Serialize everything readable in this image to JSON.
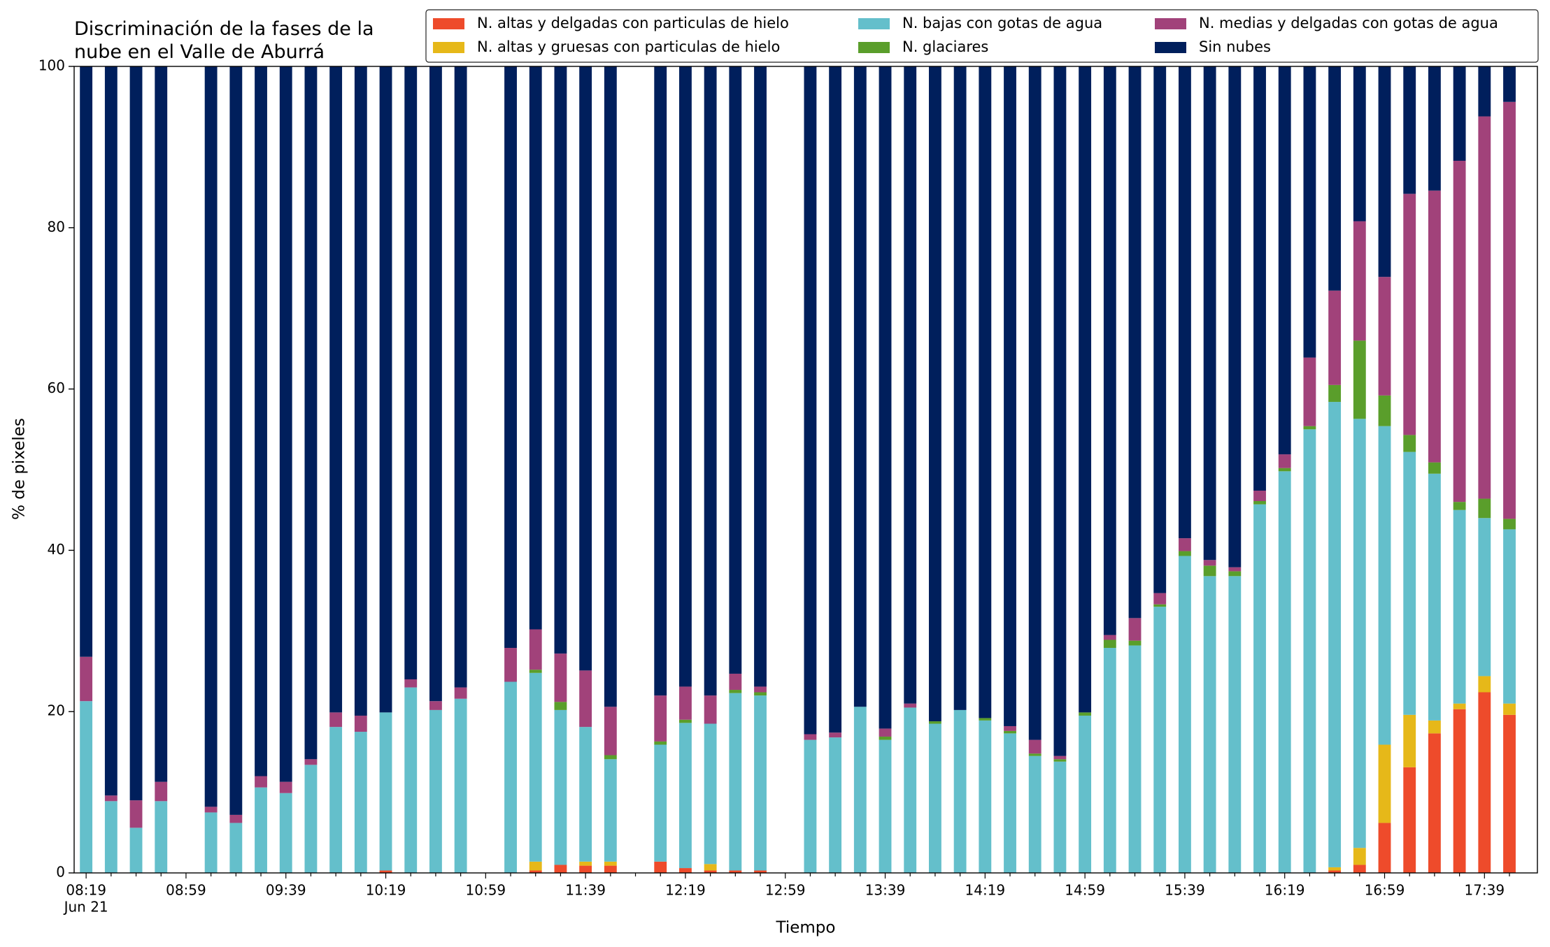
{
  "chart_data": {
    "type": "stacked_bar",
    "title": [
      "Discriminación de la fases de la",
      "nube en el Valle de Aburrá"
    ],
    "x_label": "Tiempo",
    "y_label": "% de pixeles",
    "x_sublabel": "Jun 21",
    "categories": [
      "08:19",
      null,
      null,
      null,
      "08:59",
      null,
      null,
      null,
      "09:39",
      null,
      null,
      null,
      "10:19",
      null,
      null,
      null,
      "10:59",
      null,
      null,
      null,
      "11:39",
      null,
      null,
      null,
      "12:19",
      null,
      null,
      null,
      "12:59",
      null,
      null,
      null,
      "13:39",
      null,
      null,
      null,
      "14:19",
      null,
      null,
      null,
      "14:59",
      null,
      null,
      null,
      "15:39",
      null,
      null,
      null,
      "16:19",
      null,
      null,
      null,
      "16:59",
      null,
      null,
      null,
      "17:39",
      null
    ],
    "ylim": [
      0,
      100
    ],
    "yticks": [
      0,
      20,
      40,
      60,
      80,
      100
    ],
    "grid": false,
    "legend": "upper right",
    "series": [
      {
        "name": "N. altas y delgadas con particulas de hielo",
        "color": "#ee4b2b",
        "values": [
          0,
          0,
          0,
          0,
          null,
          0,
          0,
          0,
          0,
          0,
          0,
          0,
          0.3,
          0,
          0,
          0,
          null,
          0,
          0.3,
          1.0,
          0.9,
          0.9,
          null,
          1.4,
          0.6,
          0.3,
          0.3,
          0.3,
          null,
          0,
          0,
          0,
          0,
          0,
          0,
          0,
          0,
          0,
          0,
          0,
          0,
          0,
          0,
          0,
          0,
          0,
          0,
          0,
          0,
          0,
          0.3,
          1.0,
          6.2,
          13.1,
          17.3,
          20.3,
          22.4,
          19.6
        ]
      },
      {
        "name": "N. altas y gruesas con particulas de hielo",
        "color": "#e6b819",
        "values": [
          0,
          0,
          0,
          0,
          null,
          0,
          0,
          0,
          0,
          0,
          0,
          0,
          0,
          0,
          0,
          0,
          null,
          0,
          1.1,
          0,
          0.5,
          0.5,
          null,
          0,
          0,
          0.8,
          0,
          0,
          null,
          0,
          0,
          0,
          0,
          0,
          0,
          0,
          0,
          0,
          0,
          0,
          0,
          0,
          0,
          0,
          0,
          0,
          0,
          0,
          0,
          0,
          0.4,
          2.1,
          9.7,
          6.5,
          1.6,
          0.7,
          2.0,
          1.4
        ]
      },
      {
        "name": "N. bajas con gotas de agua",
        "color": "#64bfcb",
        "values": [
          21.3,
          8.9,
          5.6,
          8.9,
          null,
          7.5,
          6.2,
          10.6,
          9.9,
          13.4,
          18.1,
          17.5,
          19.6,
          23.0,
          20.2,
          21.6,
          null,
          23.7,
          23.4,
          19.2,
          16.7,
          12.7,
          null,
          14.5,
          18.0,
          17.4,
          22.0,
          21.7,
          null,
          16.5,
          16.8,
          20.6,
          16.5,
          20.5,
          18.5,
          20.2,
          18.9,
          17.3,
          14.5,
          13.8,
          19.5,
          27.9,
          28.2,
          33.0,
          39.3,
          36.8,
          36.8,
          45.7,
          49.8,
          55.0,
          57.7,
          53.2,
          39.5,
          32.6,
          30.6,
          24.0,
          19.6,
          21.6
        ]
      },
      {
        "name": "N. glaciares",
        "color": "#5a9e2b",
        "values": [
          0,
          0,
          0,
          0,
          null,
          0,
          0,
          0,
          0,
          0,
          0,
          0,
          0,
          0,
          0,
          0,
          null,
          0,
          0.4,
          1.0,
          0,
          0.5,
          null,
          0.4,
          0.4,
          0,
          0.4,
          0.4,
          null,
          0,
          0,
          0,
          0.4,
          0,
          0.3,
          0,
          0.3,
          0.3,
          0.3,
          0.3,
          0.4,
          1.0,
          0.6,
          0.3,
          0.6,
          1.3,
          0.6,
          0.4,
          0.4,
          0.4,
          2.1,
          9.7,
          3.8,
          2.1,
          1.4,
          1.0,
          2.4,
          1.3
        ]
      },
      {
        "name": "N. medias y delgadas con gotas de agua",
        "color": "#a1427a",
        "values": [
          5.5,
          0.7,
          3.4,
          2.4,
          null,
          0.7,
          1.0,
          1.4,
          1.4,
          0.7,
          1.8,
          2.0,
          0,
          1.0,
          1.1,
          1.4,
          null,
          4.2,
          5.0,
          6.0,
          7.0,
          6.0,
          null,
          5.7,
          4.1,
          3.5,
          2.0,
          0.7,
          null,
          0.7,
          0.6,
          0,
          1.0,
          0.5,
          0,
          0,
          0,
          0.6,
          1.7,
          0.4,
          0,
          0.6,
          2.8,
          1.4,
          1.6,
          0.7,
          0.5,
          1.3,
          1.7,
          8.5,
          11.7,
          14.8,
          14.7,
          29.9,
          33.7,
          42.3,
          47.4,
          51.7
        ]
      },
      {
        "name": "Sin nubes",
        "color": "#001f5c",
        "values": [
          73.2,
          90.4,
          91.0,
          88.7,
          null,
          91.8,
          92.8,
          88.0,
          88.7,
          85.9,
          80.1,
          80.5,
          80.1,
          76.0,
          78.7,
          77.0,
          null,
          72.1,
          69.8,
          72.8,
          74.9,
          79.4,
          null,
          78.0,
          76.9,
          78.0,
          75.3,
          76.9,
          null,
          82.8,
          82.6,
          79.4,
          82.1,
          79.0,
          81.2,
          79.8,
          80.8,
          81.8,
          83.5,
          85.5,
          80.1,
          70.5,
          68.4,
          65.3,
          58.5,
          61.2,
          62.1,
          52.6,
          48.1,
          36.1,
          27.8,
          19.2,
          26.1,
          15.8,
          15.4,
          11.7,
          6.2,
          4.4
        ]
      }
    ]
  }
}
